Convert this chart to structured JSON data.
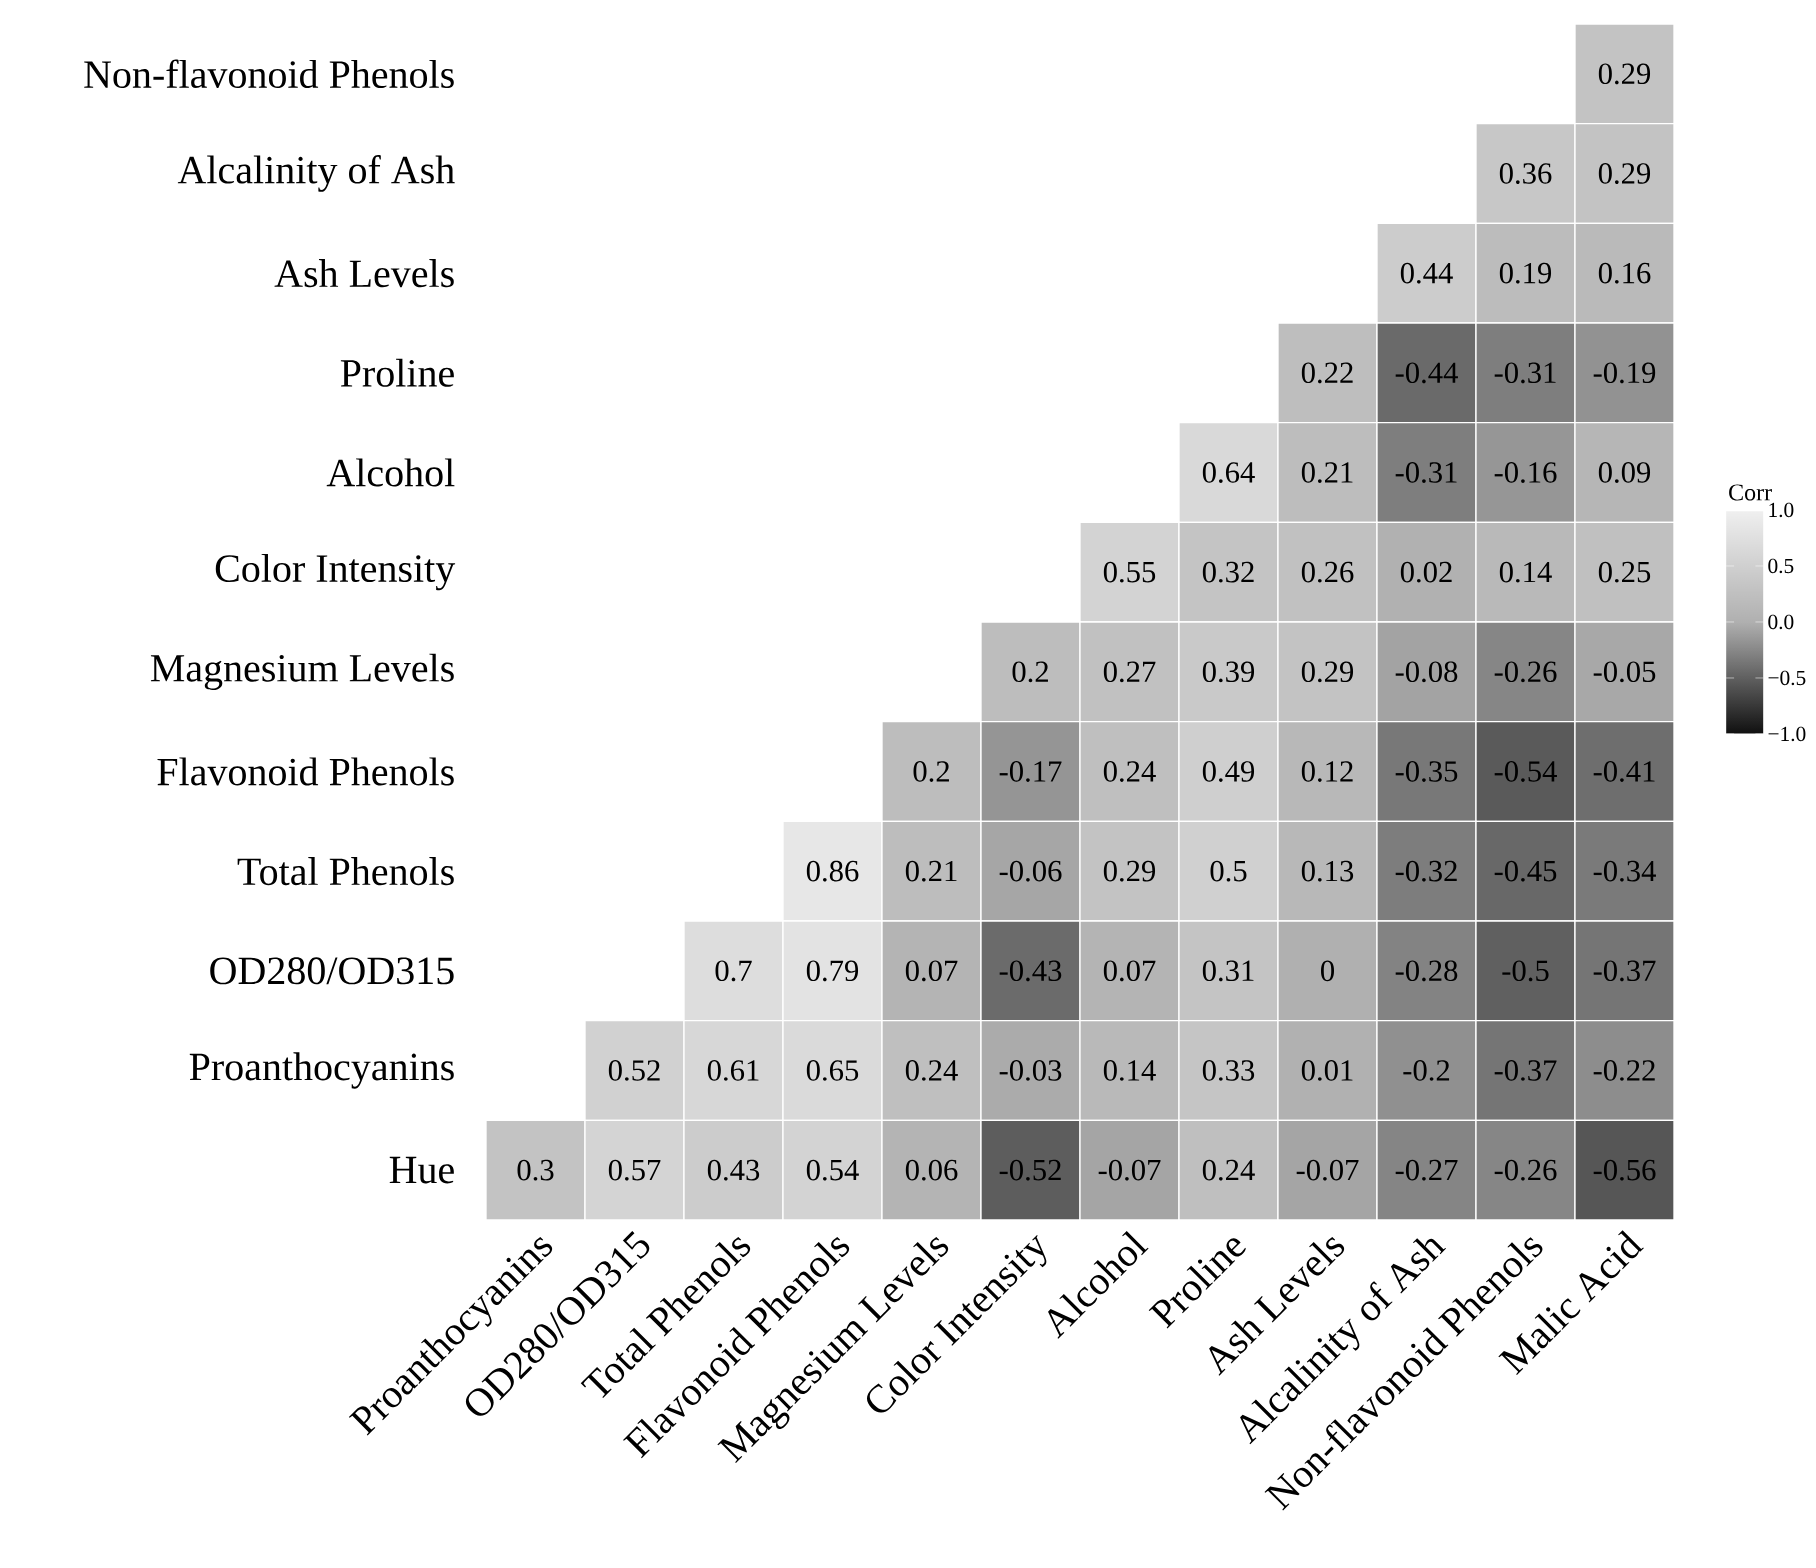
{
  "chart_data": {
    "type": "heatmap",
    "categories": [
      "Proanthocyanins",
      "OD280/OD315",
      "Total Phenols",
      "Flavonoid Phenols",
      "Magnesium Levels",
      "Color Intensity",
      "Alcohol",
      "Proline",
      "Ash Levels",
      "Alcalinity of Ash",
      "Non-flavonoid Phenols",
      "Malic Acid"
    ],
    "y_categories": [
      "Non-flavonoid Phenols",
      "Alcalinity of Ash",
      "Ash Levels",
      "Proline",
      "Alcohol",
      "Color Intensity",
      "Magnesium Levels",
      "Flavonoid Phenols",
      "Total Phenols",
      "OD280/OD315",
      "Proanthocyanins",
      "Hue"
    ],
    "cells": [
      [
        null,
        null,
        null,
        null,
        null,
        null,
        null,
        null,
        null,
        null,
        null,
        0.29
      ],
      [
        null,
        null,
        null,
        null,
        null,
        null,
        null,
        null,
        null,
        null,
        0.36,
        0.29
      ],
      [
        null,
        null,
        null,
        null,
        null,
        null,
        null,
        null,
        null,
        0.44,
        0.19,
        0.16
      ],
      [
        null,
        null,
        null,
        null,
        null,
        null,
        null,
        null,
        0.22,
        -0.44,
        -0.31,
        -0.19
      ],
      [
        null,
        null,
        null,
        null,
        null,
        null,
        null,
        0.64,
        0.21,
        -0.31,
        -0.16,
        0.09
      ],
      [
        null,
        null,
        null,
        null,
        null,
        null,
        0.55,
        0.32,
        0.26,
        0.02,
        0.14,
        0.25
      ],
      [
        null,
        null,
        null,
        null,
        null,
        0.2,
        0.27,
        0.39,
        0.29,
        -0.08,
        -0.26,
        -0.05
      ],
      [
        null,
        null,
        null,
        null,
        0.2,
        -0.17,
        0.24,
        0.49,
        0.12,
        -0.35,
        -0.54,
        -0.41
      ],
      [
        null,
        null,
        null,
        0.86,
        0.21,
        -0.06,
        0.29,
        0.5,
        0.13,
        -0.32,
        -0.45,
        -0.34
      ],
      [
        null,
        null,
        0.7,
        0.79,
        0.07,
        -0.43,
        0.07,
        0.31,
        0,
        -0.28,
        -0.5,
        -0.37
      ],
      [
        null,
        0.52,
        0.61,
        0.65,
        0.24,
        -0.03,
        0.14,
        0.33,
        0.01,
        -0.2,
        -0.37,
        -0.22
      ],
      [
        0.3,
        0.57,
        0.43,
        0.54,
        0.06,
        -0.52,
        -0.07,
        0.24,
        -0.07,
        -0.27,
        -0.26,
        -0.56
      ]
    ],
    "clabel": "Corr",
    "clim": [
      -1,
      1
    ],
    "cticks": [
      {
        "value": 1,
        "label": "1.0"
      },
      {
        "value": 0.5,
        "label": "0.5"
      },
      {
        "value": 0,
        "label": "0.0"
      },
      {
        "value": -0.5,
        "label": "−0.5"
      },
      {
        "value": -1,
        "label": "−1.0"
      }
    ],
    "data_labels": true
  }
}
